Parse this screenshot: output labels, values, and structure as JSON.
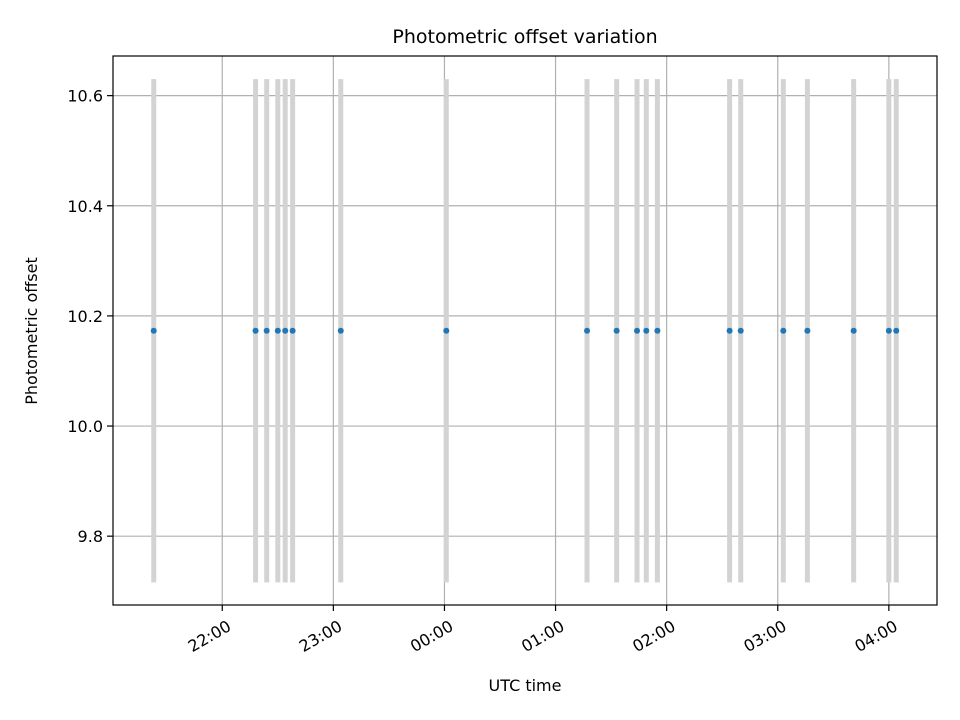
{
  "chart_data": {
    "type": "scatter",
    "title": "Photometric offset variation",
    "xlabel": "UTC time",
    "ylabel": "Photometric offset",
    "grid": true,
    "x_ticks": [
      "22:00",
      "23:00",
      "00:00",
      "01:00",
      "02:00",
      "03:00",
      "04:00"
    ],
    "x_tick_times": [
      "2000-01-01T22:00",
      "2000-01-01T23:00",
      "2000-01-02T00:00",
      "2000-01-02T01:00",
      "2000-01-02T02:00",
      "2000-01-02T03:00",
      "2000-01-02T04:00"
    ],
    "xlim": [
      "2000-01-01T21:01",
      "2000-01-02T04:26"
    ],
    "ylim": [
      9.675,
      10.672
    ],
    "y_ticks": [
      "9.8",
      "10.0",
      "10.2",
      "10.4",
      "10.6"
    ],
    "point_color": "#1f77b4",
    "errorbar_color": "#d3d3d3",
    "points": [
      {
        "t": "2000-01-01T21:23",
        "y": 10.173,
        "yerr": 0.457
      },
      {
        "t": "2000-01-01T22:18",
        "y": 10.173,
        "yerr": 0.457
      },
      {
        "t": "2000-01-01T22:24",
        "y": 10.173,
        "yerr": 0.457
      },
      {
        "t": "2000-01-01T22:30",
        "y": 10.173,
        "yerr": 0.457
      },
      {
        "t": "2000-01-01T22:34",
        "y": 10.173,
        "yerr": 0.457
      },
      {
        "t": "2000-01-01T22:38",
        "y": 10.173,
        "yerr": 0.457
      },
      {
        "t": "2000-01-01T23:04",
        "y": 10.173,
        "yerr": 0.457
      },
      {
        "t": "2000-01-02T00:01",
        "y": 10.173,
        "yerr": 0.457
      },
      {
        "t": "2000-01-02T01:17",
        "y": 10.173,
        "yerr": 0.457
      },
      {
        "t": "2000-01-02T01:33",
        "y": 10.173,
        "yerr": 0.457
      },
      {
        "t": "2000-01-02T01:44",
        "y": 10.173,
        "yerr": 0.457
      },
      {
        "t": "2000-01-02T01:49",
        "y": 10.173,
        "yerr": 0.457
      },
      {
        "t": "2000-01-02T01:55",
        "y": 10.173,
        "yerr": 0.457
      },
      {
        "t": "2000-01-02T02:34",
        "y": 10.173,
        "yerr": 0.457
      },
      {
        "t": "2000-01-02T02:40",
        "y": 10.173,
        "yerr": 0.457
      },
      {
        "t": "2000-01-02T03:03",
        "y": 10.173,
        "yerr": 0.457
      },
      {
        "t": "2000-01-02T03:16",
        "y": 10.173,
        "yerr": 0.457
      },
      {
        "t": "2000-01-02T03:41",
        "y": 10.173,
        "yerr": 0.457
      },
      {
        "t": "2000-01-02T04:00",
        "y": 10.173,
        "yerr": 0.457
      },
      {
        "t": "2000-01-02T04:04",
        "y": 10.173,
        "yerr": 0.457
      }
    ]
  }
}
